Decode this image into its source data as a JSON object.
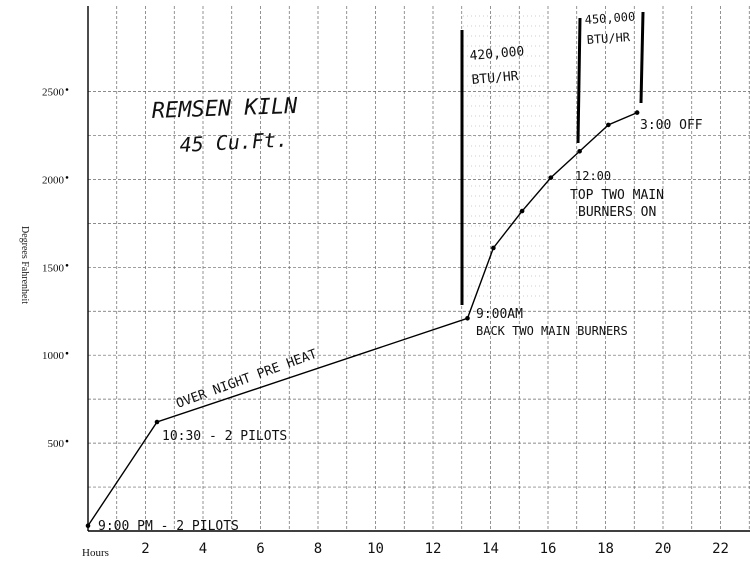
{
  "chart_data": {
    "type": "line",
    "title": "REMSEN KILN",
    "subtitle": "45 Cu.Ft.",
    "xlabel": "Hours",
    "ylabel": "Degrees Fahrenheit",
    "xlim": [
      0,
      23.5
    ],
    "ylim": [
      0,
      2700
    ],
    "x_ticks": [
      "2",
      "4",
      "6",
      "8",
      "10",
      "12",
      "14",
      "16",
      "18",
      "20",
      "22"
    ],
    "y_ticks": [
      "500",
      "1000",
      "1500",
      "2000",
      "2500"
    ],
    "grid": true,
    "series": [
      {
        "x": [
          0,
          2.4,
          13.2,
          14.1,
          15.1,
          16.1,
          17.1,
          18.1,
          19.1
        ],
        "y": [
          30,
          620,
          1210,
          1610,
          1820,
          2010,
          2160,
          2310,
          2380
        ]
      }
    ],
    "annotations": {
      "start": "9:00 PM - 2 PILOTS",
      "pilots_1030": "10:30 - 2 PILOTS",
      "preheat": "OVER NIGHT PRE HEAT",
      "am_time": "9:00AM",
      "am_burners": "BACK TWO MAIN BURNERS",
      "noon_time": "12:00",
      "noon_line1": "TOP TWO MAIN",
      "noon_line2": "BURNERS ON",
      "off": "3:00 OFF",
      "btu1_value": "420,000",
      "btu1_unit": "BTU/HR",
      "btu2_value": "450,000",
      "btu2_unit": "BTU/HR"
    }
  }
}
